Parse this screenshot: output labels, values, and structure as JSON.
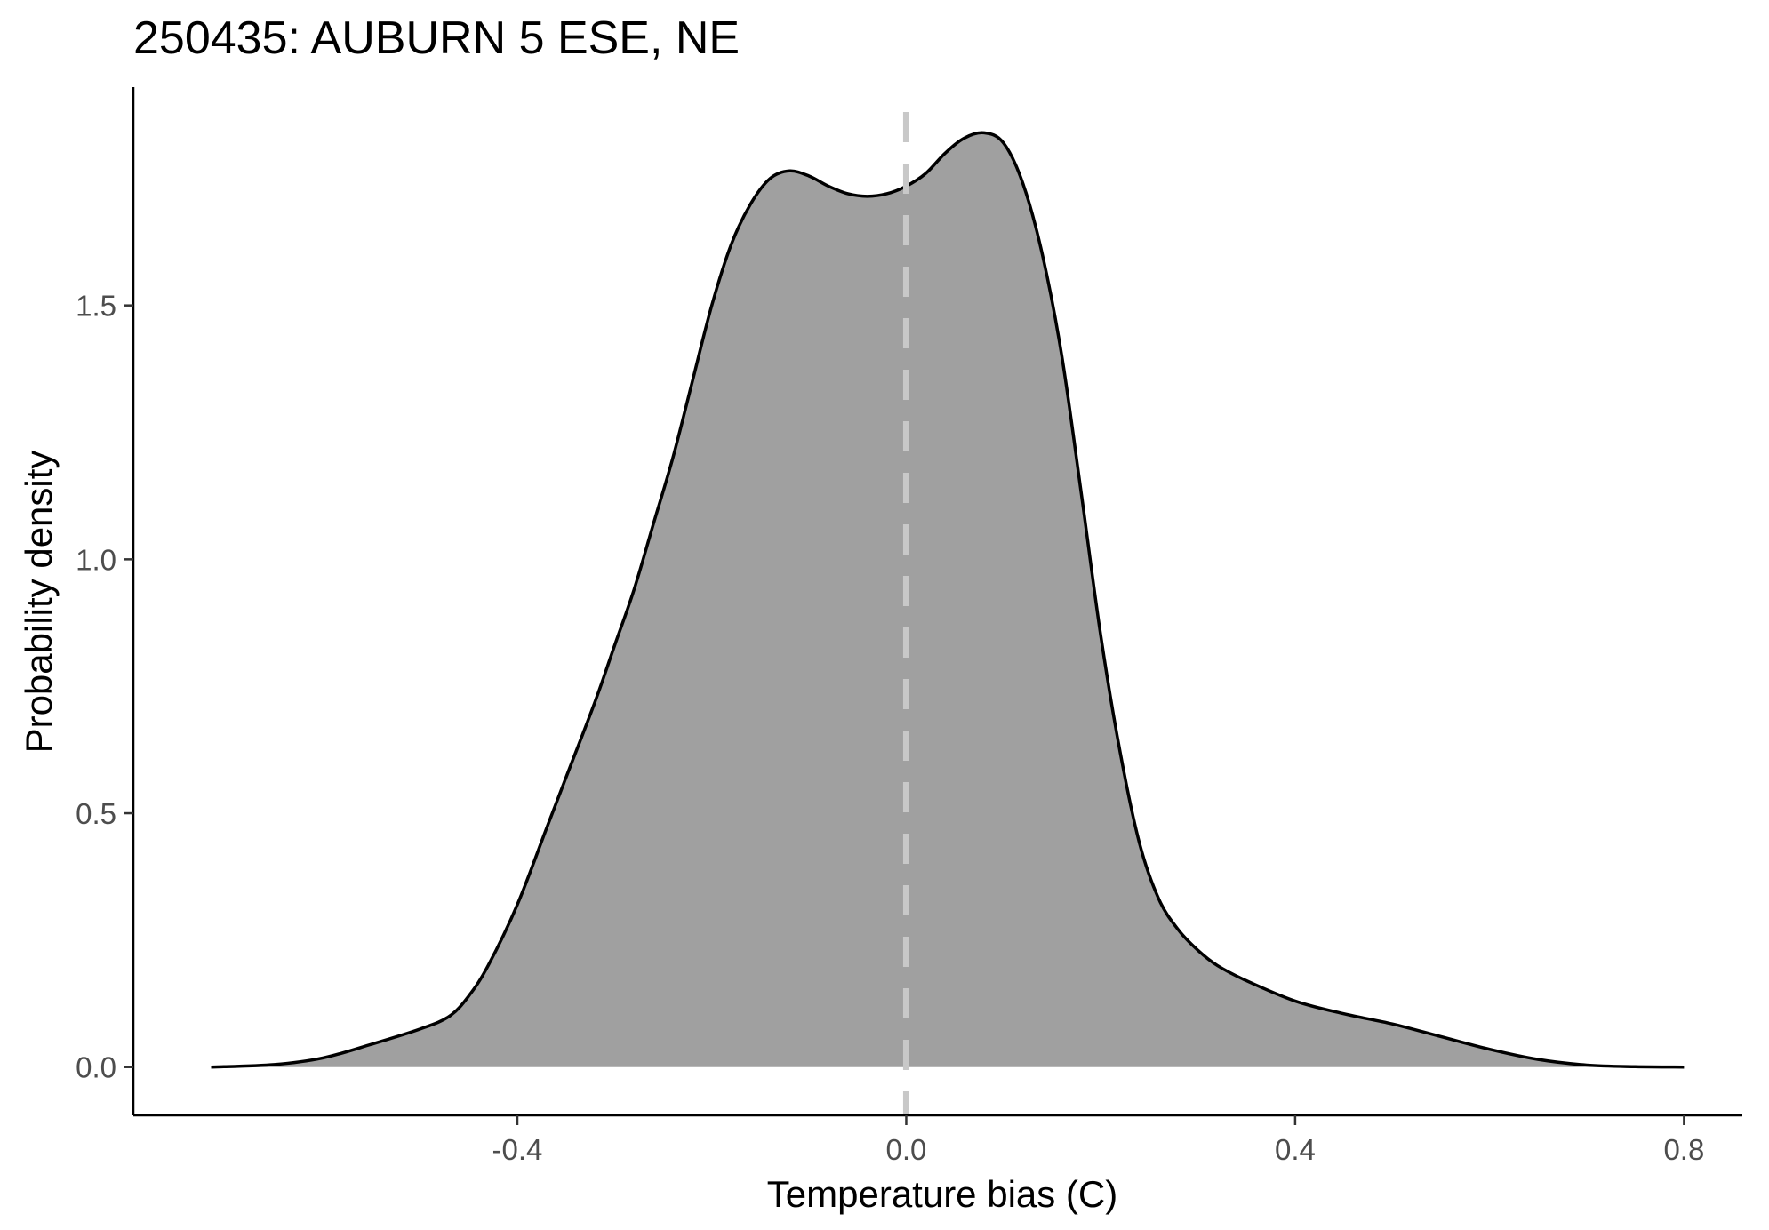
{
  "chart_data": {
    "type": "area",
    "subtype": "density",
    "title": "250435: AUBURN 5 ESE, NE",
    "xlabel": "Temperature bias (C)",
    "ylabel": "Probability density",
    "xlim": [
      -0.795,
      0.86
    ],
    "ylim": [
      -0.095,
      1.93
    ],
    "x_ticks": [
      -0.4,
      0.0,
      0.4,
      0.8
    ],
    "x_tick_labels": [
      "-0.4",
      "0.0",
      "0.4",
      "0.8"
    ],
    "y_ticks": [
      0.0,
      0.5,
      1.0,
      1.5
    ],
    "y_tick_labels": [
      "0.0",
      "0.5",
      "1.0",
      "1.5"
    ],
    "grid": false,
    "legend": "none",
    "reference_line": {
      "x": 0.0,
      "style": "dashed",
      "color": "#c8c8c8"
    },
    "fill_color": "#a0a0a0",
    "line_color": "#000000",
    "series": [
      {
        "x": [
          -0.715,
          -0.65,
          -0.6,
          -0.55,
          -0.5,
          -0.47,
          -0.45,
          -0.43,
          -0.4,
          -0.37,
          -0.35,
          -0.32,
          -0.3,
          -0.28,
          -0.26,
          -0.24,
          -0.22,
          -0.2,
          -0.18,
          -0.16,
          -0.14,
          -0.12,
          -0.1,
          -0.08,
          -0.06,
          -0.04,
          -0.02,
          0.0,
          0.02,
          0.04,
          0.06,
          0.08,
          0.1,
          0.12,
          0.14,
          0.16,
          0.18,
          0.2,
          0.22,
          0.24,
          0.26,
          0.28,
          0.3,
          0.32,
          0.35,
          0.4,
          0.45,
          0.5,
          0.55,
          0.6,
          0.65,
          0.7,
          0.75,
          0.8
        ],
        "y": [
          0.0,
          0.005,
          0.018,
          0.045,
          0.075,
          0.1,
          0.14,
          0.2,
          0.32,
          0.47,
          0.57,
          0.72,
          0.83,
          0.94,
          1.07,
          1.2,
          1.35,
          1.5,
          1.62,
          1.7,
          1.75,
          1.765,
          1.755,
          1.735,
          1.72,
          1.715,
          1.72,
          1.735,
          1.76,
          1.8,
          1.83,
          1.84,
          1.82,
          1.74,
          1.6,
          1.4,
          1.13,
          0.85,
          0.62,
          0.44,
          0.33,
          0.27,
          0.23,
          0.2,
          0.17,
          0.13,
          0.105,
          0.085,
          0.06,
          0.035,
          0.015,
          0.004,
          0.0008,
          0.0
        ]
      }
    ]
  }
}
